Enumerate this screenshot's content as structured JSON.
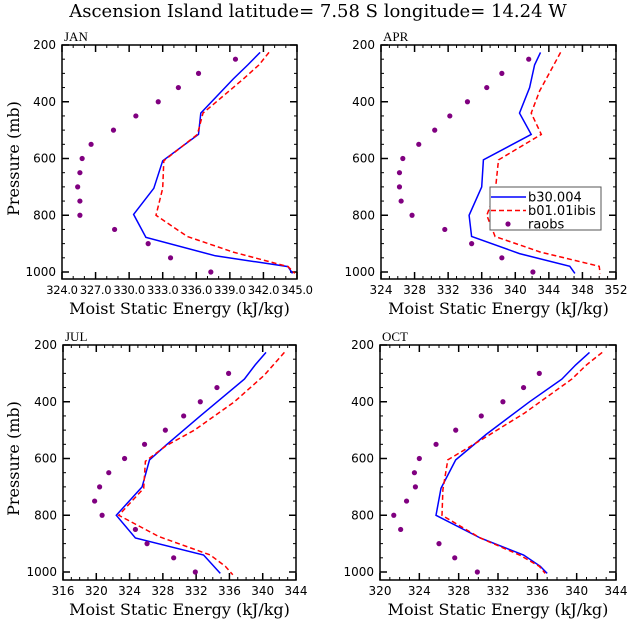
{
  "title": "Ascension Island   latitude=  7.58 S longitude=  14.24 W",
  "colors": {
    "model1": "#0000ff",
    "model2": "#ff0000",
    "obs": "#800080",
    "axis": "#000000"
  },
  "legend": {
    "entries": [
      {
        "label": "b30.004",
        "style": "solid",
        "color": "#0000ff"
      },
      {
        "label": "b01.01ibis",
        "style": "dashed",
        "color": "#ff0000"
      },
      {
        "label": "raobs",
        "style": "dot",
        "color": "#800080"
      }
    ],
    "panel": "APR",
    "placement": "lower-right"
  },
  "chart_data": [
    {
      "type": "line",
      "title": "JAN",
      "xlabel": "Moist Static Energy (kJ/kg)",
      "ylabel": "Pressure (mb)",
      "xlim": [
        324,
        345
      ],
      "ylim": [
        1000,
        200
      ],
      "y_inverted": true,
      "xticks": [
        324,
        327,
        330,
        333,
        336,
        339,
        342,
        345
      ],
      "xtick_labels": [
        "324.0",
        "327.0",
        "330.0",
        "333.0",
        "336.0",
        "339.0",
        "342.0",
        "345.0"
      ],
      "xtick_labels_joined": "324.0327.0330.0333.0336.0339.0342.0345.0",
      "yticks": [
        200,
        400,
        600,
        800,
        1000
      ],
      "show_xlabel": true,
      "show_ylabel": true,
      "series": [
        {
          "name": "b30.004",
          "style": "solid",
          "p": [
            226,
            270,
            320,
            440,
            515,
            608,
            705,
            797,
            878,
            943,
            981,
            1005
          ],
          "mse": [
            341.7,
            340.6,
            339.3,
            336.4,
            336.2,
            333.0,
            332.2,
            330.4,
            331.5,
            337.7,
            344.2,
            344.6
          ]
        },
        {
          "name": "b01.01ibis",
          "style": "dashed",
          "p": [
            226,
            270,
            320,
            440,
            515,
            608,
            705,
            800,
            875,
            930,
            981,
            1005
          ],
          "mse": [
            342.5,
            341.6,
            340.2,
            336.6,
            336.1,
            333.1,
            333.0,
            332.4,
            335.2,
            339.3,
            344.2,
            344.8
          ]
        },
        {
          "name": "raobs",
          "style": "dot",
          "p": [
            250,
            300,
            350,
            400,
            450,
            500,
            550,
            600,
            650,
            700,
            750,
            800,
            850,
            900,
            950,
            1000
          ],
          "mse": [
            339.5,
            336.2,
            334.4,
            332.6,
            330.6,
            328.6,
            326.6,
            325.8,
            325.6,
            325.4,
            325.6,
            325.6,
            328.7,
            331.7,
            333.7,
            337.3
          ]
        }
      ]
    },
    {
      "type": "line",
      "title": "APR",
      "xlabel": "Moist Static Energy (kJ/kg)",
      "ylabel": "",
      "xlim": [
        324,
        352
      ],
      "ylim": [
        1000,
        200
      ],
      "y_inverted": true,
      "xticks": [
        324,
        328,
        332,
        336,
        340,
        344,
        348,
        352
      ],
      "xtick_labels": [
        "324",
        "328",
        "332",
        "336",
        "340",
        "344",
        "348",
        "352"
      ],
      "yticks": [
        200,
        400,
        600,
        800,
        1000
      ],
      "show_xlabel": true,
      "show_ylabel": false,
      "series": [
        {
          "name": "b30.004",
          "style": "solid",
          "p": [
            226,
            270,
            350,
            440,
            515,
            605,
            700,
            800,
            875,
            935,
            980,
            1005
          ],
          "mse": [
            343.0,
            342.3,
            341.7,
            340.5,
            341.9,
            336.2,
            336.0,
            334.5,
            334.8,
            340.5,
            346.5,
            347.1
          ]
        },
        {
          "name": "b01.01ibis",
          "style": "dashed",
          "p": [
            226,
            362,
            440,
            515,
            605,
            720,
            800,
            875,
            930,
            980,
            1005
          ],
          "mse": [
            345.4,
            342.9,
            341.9,
            343.1,
            338.0,
            337.6,
            336.6,
            337.6,
            343.0,
            350.0,
            350.1
          ]
        },
        {
          "name": "raobs",
          "style": "dot",
          "p": [
            250,
            300,
            350,
            400,
            450,
            500,
            550,
            600,
            650,
            700,
            750,
            800,
            850,
            900,
            950,
            1000
          ],
          "mse": [
            341.6,
            338.4,
            336.6,
            334.3,
            332.2,
            330.4,
            328.5,
            326.6,
            326.2,
            326.2,
            326.4,
            327.7,
            331.6,
            334.8,
            338.4,
            342.1
          ]
        }
      ]
    },
    {
      "type": "line",
      "title": "JUL",
      "xlabel": "Moist Static Energy (kJ/kg)",
      "ylabel": "Pressure (mb)",
      "xlim": [
        316,
        344
      ],
      "ylim": [
        1000,
        200
      ],
      "y_inverted": true,
      "xticks": [
        316,
        320,
        324,
        328,
        332,
        336,
        340,
        344
      ],
      "xtick_labels": [
        "316",
        "320",
        "324",
        "328",
        "332",
        "336",
        "340",
        "344"
      ],
      "yticks": [
        200,
        400,
        600,
        800,
        1000
      ],
      "show_xlabel": true,
      "show_ylabel": true,
      "series": [
        {
          "name": "b30.004",
          "style": "solid",
          "p": [
            226,
            270,
            320,
            450,
            555,
            605,
            700,
            800,
            880,
            940,
            1005
          ],
          "mse": [
            340.4,
            339.1,
            337.8,
            332.5,
            328.3,
            326.4,
            325.5,
            322.4,
            324.7,
            332.9,
            334.9
          ]
        },
        {
          "name": "b01.01ibis",
          "style": "dashed",
          "p": [
            226,
            306,
            400,
            500,
            555,
            610,
            705,
            800,
            875,
            940,
            980,
            1010
          ],
          "mse": [
            342.6,
            340.2,
            336.6,
            331.8,
            328.4,
            325.9,
            325.7,
            322.7,
            327.5,
            333.7,
            335.5,
            336.4
          ]
        },
        {
          "name": "raobs",
          "style": "dot",
          "p": [
            300,
            350,
            400,
            450,
            500,
            550,
            600,
            650,
            700,
            750,
            800,
            850,
            900,
            950,
            1000
          ],
          "mse": [
            335.9,
            334.5,
            332.5,
            330.5,
            328.3,
            325.8,
            323.4,
            321.5,
            320.4,
            319.8,
            320.7,
            324.7,
            326.1,
            329.3,
            331.9
          ]
        }
      ]
    },
    {
      "type": "line",
      "title": "OCT",
      "xlabel": "Moist Static Energy (kJ/kg)",
      "ylabel": "",
      "xlim": [
        320,
        344
      ],
      "ylim": [
        1000,
        200
      ],
      "y_inverted": true,
      "xticks": [
        320,
        324,
        328,
        332,
        336,
        340,
        344
      ],
      "xtick_labels": [
        "320",
        "324",
        "328",
        "332",
        "336",
        "340",
        "344"
      ],
      "yticks": [
        200,
        400,
        600,
        800,
        1000
      ],
      "show_xlabel": true,
      "show_ylabel": false,
      "series": [
        {
          "name": "b30.004",
          "style": "solid",
          "p": [
            226,
            270,
            320,
            400,
            515,
            605,
            705,
            800,
            880,
            940,
            980,
            1005
          ],
          "mse": [
            341.3,
            339.9,
            338.5,
            335.2,
            330.8,
            327.7,
            326.2,
            325.7,
            330.2,
            334.6,
            336.3,
            337.0
          ]
        },
        {
          "name": "b01.01ibis",
          "style": "dashed",
          "p": [
            226,
            270,
            320,
            440,
            530,
            605,
            710,
            800,
            880,
            940,
            980,
            1005
          ],
          "mse": [
            342.6,
            341.0,
            339.5,
            334.7,
            330.5,
            326.9,
            326.4,
            326.3,
            330.2,
            334.2,
            336.2,
            336.8
          ]
        },
        {
          "name": "raobs",
          "style": "dot",
          "p": [
            300,
            350,
            400,
            450,
            500,
            550,
            600,
            650,
            700,
            750,
            800,
            850,
            900,
            950,
            1000
          ],
          "mse": [
            336.2,
            334.6,
            332.5,
            330.3,
            327.7,
            325.7,
            324.0,
            323.5,
            323.6,
            322.7,
            321.4,
            322.1,
            326.0,
            327.6,
            329.9
          ]
        }
      ]
    }
  ]
}
